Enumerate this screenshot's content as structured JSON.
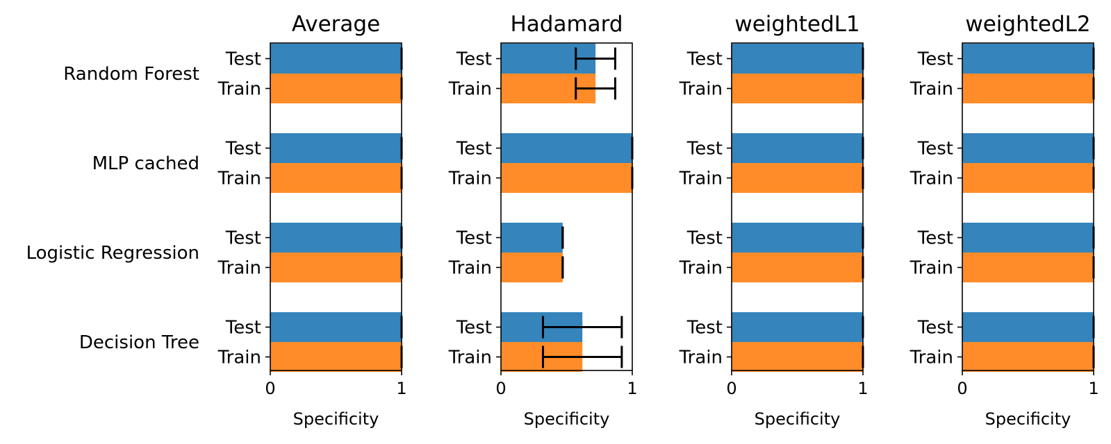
{
  "chart_data": {
    "type": "bar",
    "orientation": "horizontal",
    "groups": [
      "Random Forest",
      "MLP cached",
      "Logistic Regression",
      "Decision Tree"
    ],
    "bar_labels": [
      "Test",
      "Train"
    ],
    "colors": {
      "Test": "#3584bb",
      "Train": "#ff8c28"
    },
    "xlabel": "Specificity",
    "xlim": [
      0,
      1
    ],
    "xticks": [
      "0",
      "1"
    ],
    "panels": [
      {
        "title": "Average",
        "series": [
          {
            "name": "Test",
            "values": [
              1.0,
              1.0,
              1.0,
              1.0
            ],
            "errors": [
              0.0,
              0.0,
              0.0,
              0.0
            ]
          },
          {
            "name": "Train",
            "values": [
              1.0,
              1.0,
              1.0,
              1.0
            ],
            "errors": [
              0.0,
              0.0,
              0.0,
              0.0
            ]
          }
        ]
      },
      {
        "title": "Hadamard",
        "series": [
          {
            "name": "Test",
            "values": [
              0.72,
              1.0,
              0.47,
              0.62
            ],
            "errors": [
              0.15,
              0.0,
              0.0,
              0.3
            ]
          },
          {
            "name": "Train",
            "values": [
              0.72,
              1.0,
              0.47,
              0.62
            ],
            "errors": [
              0.15,
              0.0,
              0.0,
              0.3
            ]
          }
        ]
      },
      {
        "title": "weightedL1",
        "series": [
          {
            "name": "Test",
            "values": [
              1.0,
              1.0,
              1.0,
              1.0
            ],
            "errors": [
              0.0,
              0.0,
              0.0,
              0.0
            ]
          },
          {
            "name": "Train",
            "values": [
              1.0,
              1.0,
              1.0,
              1.0
            ],
            "errors": [
              0.0,
              0.0,
              0.0,
              0.0
            ]
          }
        ]
      },
      {
        "title": "weightedL2",
        "series": [
          {
            "name": "Test",
            "values": [
              1.0,
              1.0,
              1.0,
              1.0
            ],
            "errors": [
              0.0,
              0.0,
              0.0,
              0.0
            ]
          },
          {
            "name": "Train",
            "values": [
              1.0,
              1.0,
              1.0,
              1.0
            ],
            "errors": [
              0.0,
              0.0,
              0.0,
              0.0
            ]
          }
        ]
      }
    ]
  }
}
